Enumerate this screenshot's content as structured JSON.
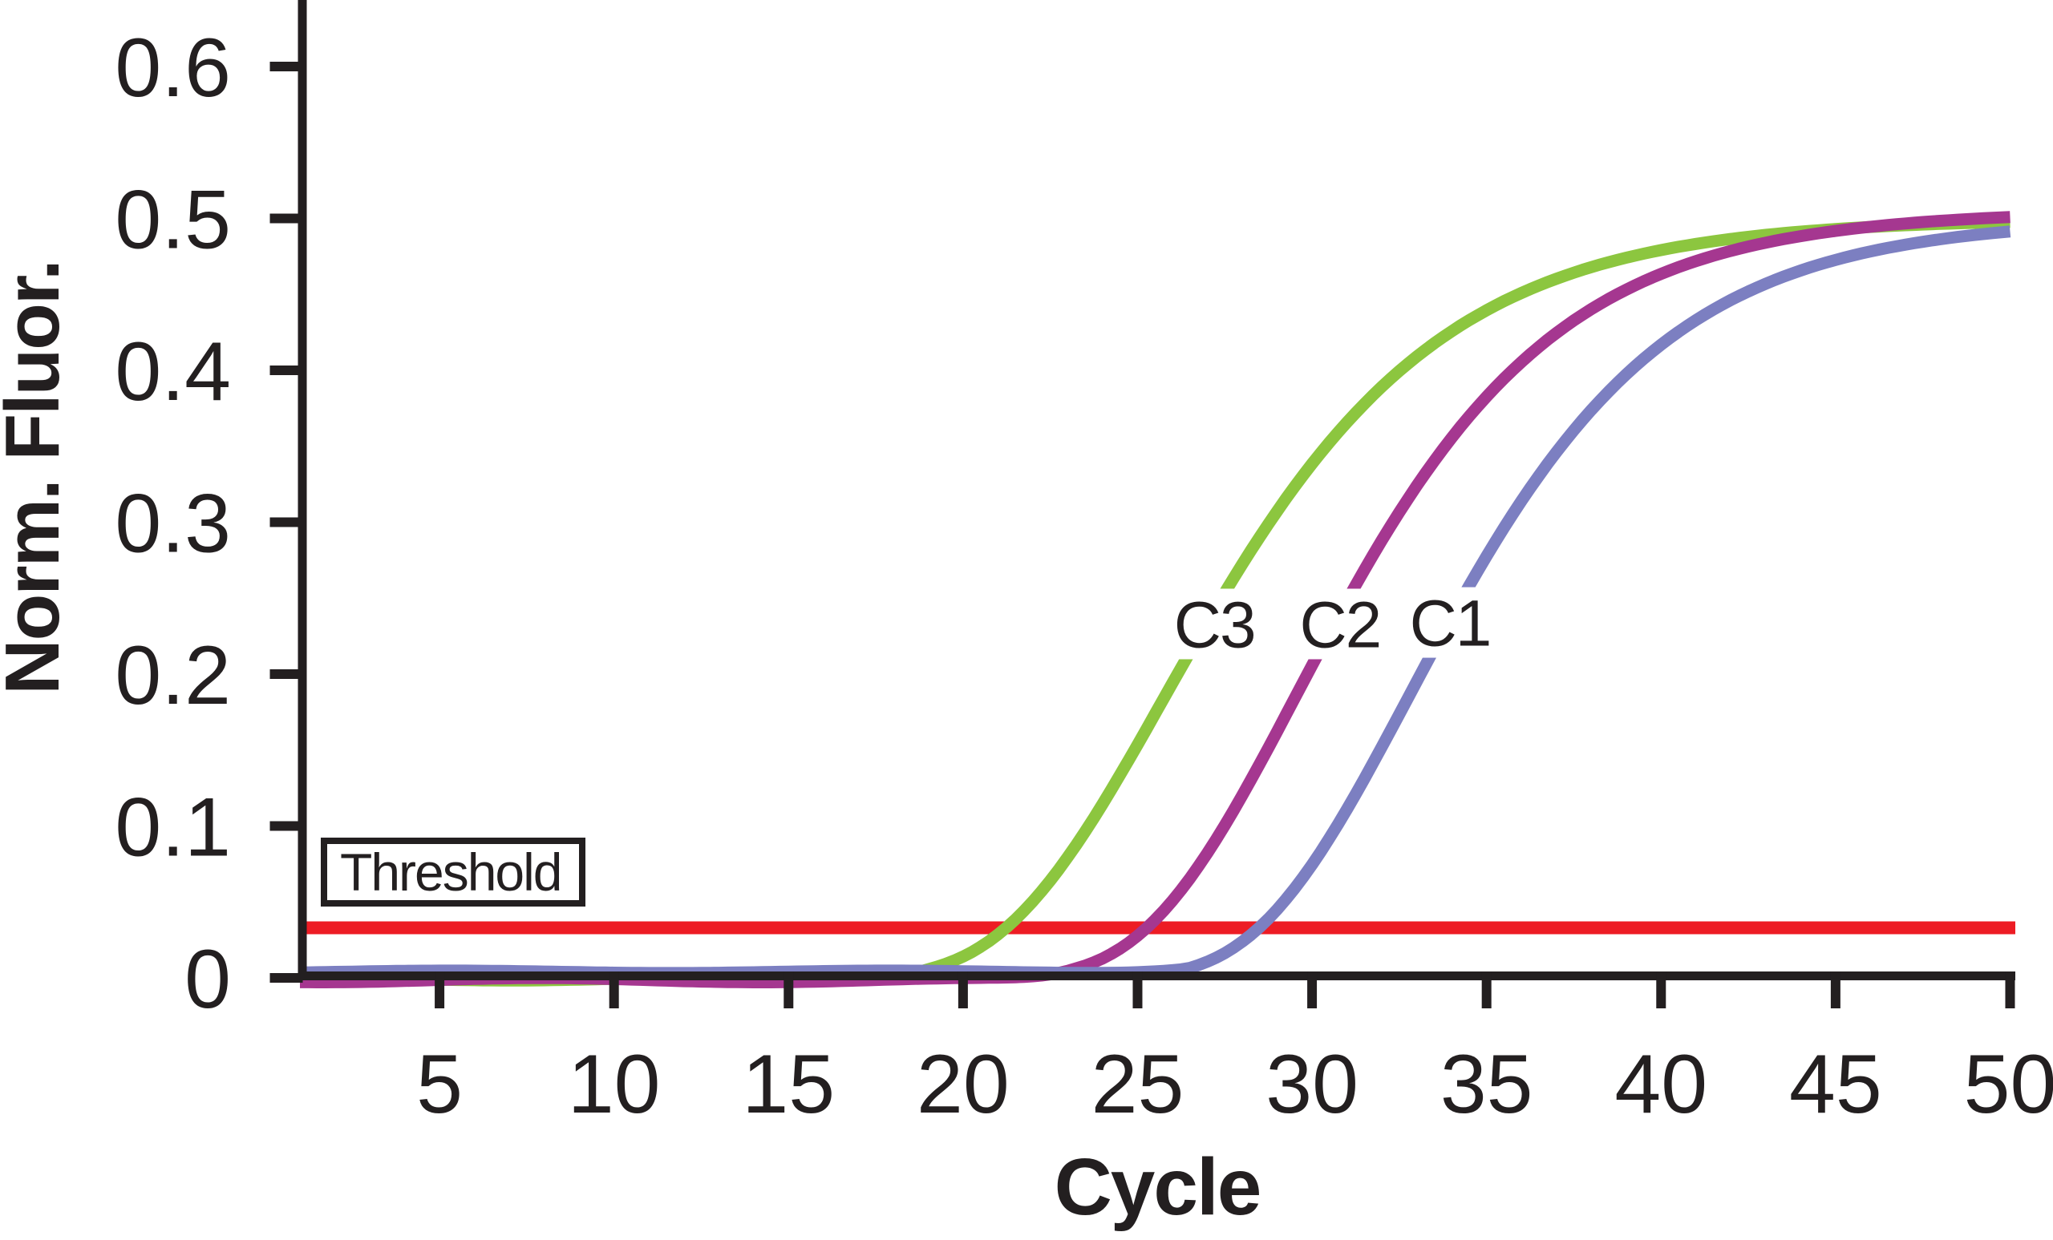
{
  "figure": {
    "background": "#ffffff",
    "ink_color": "#231F20"
  },
  "chart_data": {
    "type": "line",
    "title": "",
    "xlabel": "Cycle",
    "ylabel": "Norm. Fluor.",
    "xlim": [
      1,
      50
    ],
    "ylim": [
      0,
      0.65
    ],
    "grid": false,
    "legend_position": "inline-curve-labels",
    "x_ticks": [
      5,
      10,
      15,
      20,
      25,
      30,
      35,
      40,
      45,
      50
    ],
    "x_tick_labels": [
      "5",
      "10",
      "15",
      "20",
      "25",
      "30",
      "35",
      "40",
      "45",
      "50"
    ],
    "y_ticks": [
      0,
      0.1,
      0.2,
      0.3,
      0.4,
      0.5,
      0.6
    ],
    "y_tick_labels": [
      "0",
      "0.1",
      "0.2",
      "0.3",
      "0.4",
      "0.5",
      "0.6"
    ],
    "threshold": {
      "label": "Threshold",
      "value": 0.033,
      "color": "#ED1C24"
    },
    "series": [
      {
        "name": "C3",
        "color": "#8CC63F",
        "ct_at_threshold": 21.3,
        "label_anchor": {
          "cycle": 27.2,
          "value": 0.233
        },
        "sigmoid": {
          "model": "gompertz",
          "L": 0.5,
          "k": 0.2215,
          "m": 25.75,
          "baseline": -0.0005,
          "wiggle_amp": 0.0012,
          "wiggle_freq": 0.5,
          "wiggle_phase": 1.2
        },
        "points": [
          [
            5,
            0.0
          ],
          [
            10,
            0.0
          ],
          [
            15,
            0.001
          ],
          [
            20,
            0.014
          ],
          [
            25,
            0.154
          ],
          [
            30,
            0.338
          ],
          [
            35,
            0.44
          ],
          [
            40,
            0.479
          ],
          [
            45,
            0.493
          ],
          [
            50,
            0.498
          ]
        ]
      },
      {
        "name": "C2",
        "color": "#A53790",
        "ct_at_threshold": 25.3,
        "label_anchor": {
          "cycle": 30.8,
          "value": 0.233
        },
        "sigmoid": {
          "model": "gompertz",
          "L": 0.505,
          "k": 0.2348,
          "m": 29.54,
          "baseline": -0.0015,
          "wiggle_amp": 0.0014,
          "wiggle_freq": 0.5,
          "wiggle_phase": 3.9
        },
        "points": [
          [
            5,
            0.0
          ],
          [
            10,
            -0.001
          ],
          [
            15,
            0.0
          ],
          [
            20,
            0.001
          ],
          [
            25,
            0.028
          ],
          [
            30,
            0.206
          ],
          [
            35,
            0.383
          ],
          [
            40,
            0.463
          ],
          [
            45,
            0.492
          ],
          [
            50,
            0.501
          ]
        ]
      },
      {
        "name": "C1",
        "color": "#7C7FC1",
        "ct_at_threshold": 28.5,
        "label_anchor": {
          "cycle": 33.95,
          "value": 0.234
        },
        "sigmoid": {
          "model": "gompertz",
          "L": 0.5,
          "k": 0.2348,
          "m": 32.74,
          "baseline": 0.004,
          "wiggle_amp": 0.0008,
          "wiggle_freq": 0.5,
          "wiggle_phase": 5.2
        },
        "points": [
          [
            5,
            0.004
          ],
          [
            10,
            0.004
          ],
          [
            15,
            0.004
          ],
          [
            20,
            0.004
          ],
          [
            25,
            0.005
          ],
          [
            30,
            0.075
          ],
          [
            35,
            0.278
          ],
          [
            40,
            0.417
          ],
          [
            45,
            0.473
          ],
          [
            50,
            0.491
          ]
        ]
      }
    ]
  }
}
